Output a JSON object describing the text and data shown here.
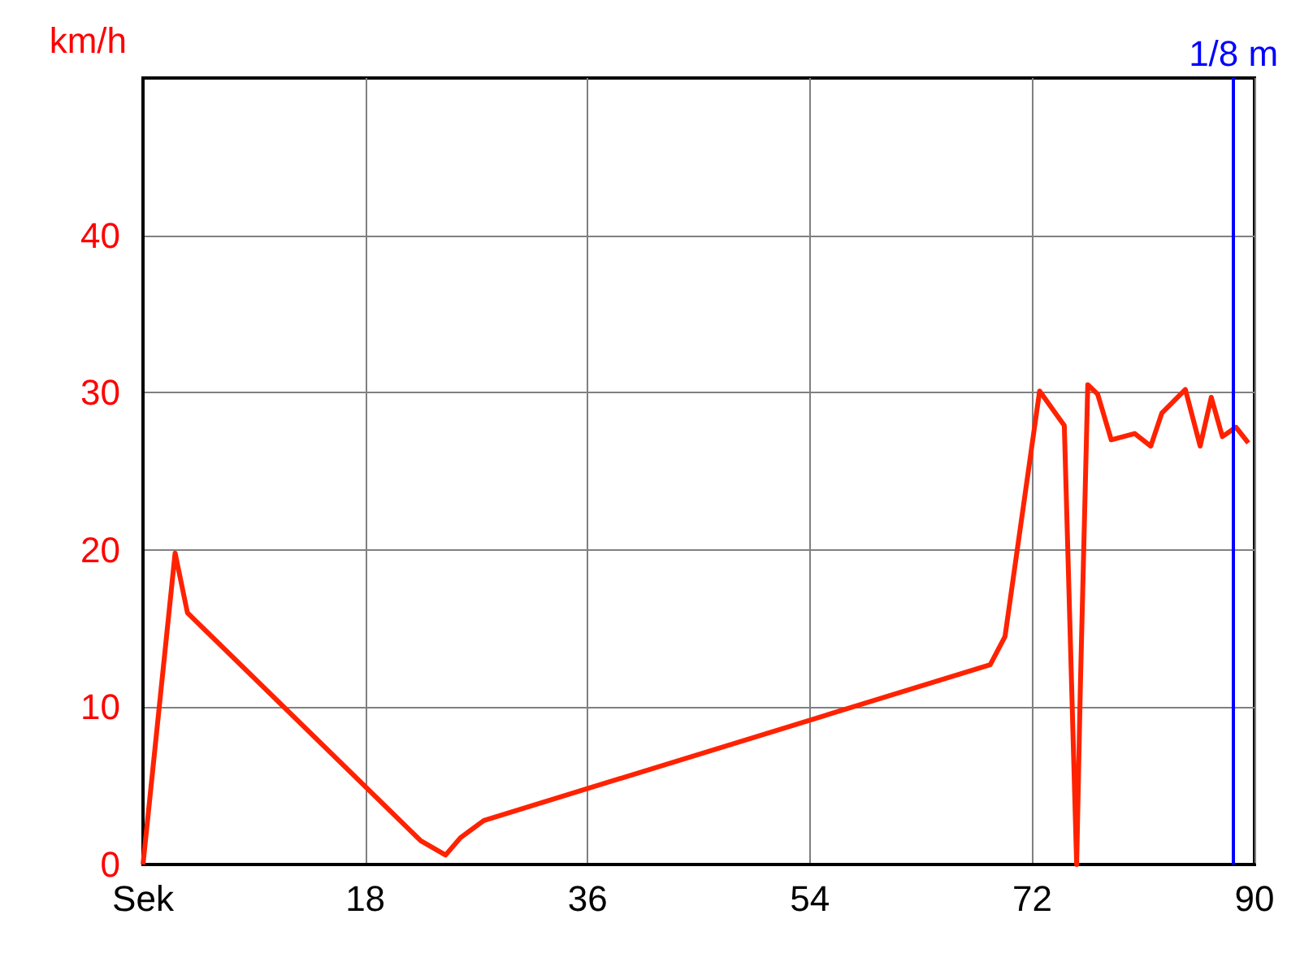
{
  "chart_data": {
    "type": "line",
    "ylabel": "km/h",
    "x": [
      0,
      2.6,
      3.6,
      22.5,
      24.5,
      25.7,
      27.6,
      68.6,
      69.8,
      72.6,
      74.6,
      75.6,
      75.9,
      76.5,
      77.3,
      78.4,
      80.3,
      81.6,
      82.5,
      84.4,
      85.6,
      86.5,
      87.4,
      88.5,
      89.5
    ],
    "series": [
      {
        "color": "#ff2200",
        "values": [
          0,
          19.8,
          16.0,
          1.5,
          0.6,
          1.7,
          2.8,
          12.7,
          14.5,
          30.1,
          27.9,
          0,
          11.3,
          30.5,
          29.9,
          27.0,
          27.4,
          26.6,
          28.7,
          30.2,
          26.6,
          29.7,
          27.2,
          27.8,
          26.8
        ]
      }
    ],
    "xlim": [
      0,
      90
    ],
    "xticks": [
      {
        "value": 0,
        "label": "Sek"
      },
      18,
      36,
      54,
      72,
      90
    ],
    "ylim": [
      0,
      50
    ],
    "yticks": [
      0,
      10,
      20,
      30,
      40
    ],
    "ref_lines": [
      {
        "axis": "x",
        "value": 88.3,
        "label": "1/8 m",
        "color": "#0000ff"
      }
    ],
    "grid": true,
    "marker": "none",
    "line_style": "solid"
  }
}
